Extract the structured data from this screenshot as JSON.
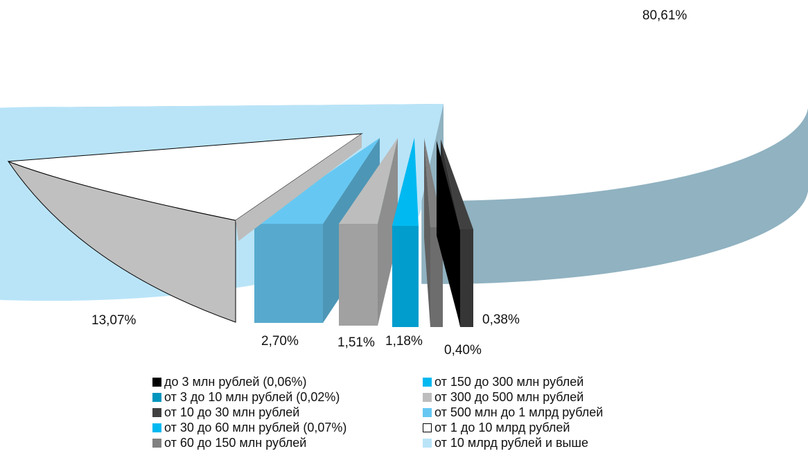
{
  "chart_data": {
    "type": "pie",
    "style": "3d-exploded",
    "data_labels": [
      "80,61%",
      "13,07%",
      "2,70%",
      "1,51%",
      "1,18%",
      "0,40%",
      "0,38%"
    ],
    "slices": [
      {
        "name": "до 3 млн рублей (0,06%)",
        "value": 0.06,
        "color": "#000000"
      },
      {
        "name": "от 3 до 10 млн рублей (0,02%)",
        "value": 0.02,
        "color": "#0095BE"
      },
      {
        "name": "от 10 до 30 млн рублей",
        "value": 0.38,
        "color": "#404040"
      },
      {
        "name": "от 30 до 60 млн рублей (0,07%)",
        "value": 0.07,
        "color": "#00B9F1"
      },
      {
        "name": "от 60 до 150 млн рублей",
        "value": 0.4,
        "color": "#808080"
      },
      {
        "name": "от 150 до 300 млн рублей",
        "value": 1.18,
        "color": "#00B9F1"
      },
      {
        "name": "от 300 до 500 млн рублей",
        "value": 1.51,
        "color": "#BDBDBD"
      },
      {
        "name": "от 500 млн до 1 млрд рублей",
        "value": 2.7,
        "color": "#66C8F2"
      },
      {
        "name": "от 1 до 10 млрд рублей",
        "value": 13.07,
        "color": "#FFFFFF"
      },
      {
        "name": "от 10 млрд рублей и выше",
        "value": 80.61,
        "color": "#B9E4F8"
      }
    ],
    "legend_position": "bottom"
  }
}
